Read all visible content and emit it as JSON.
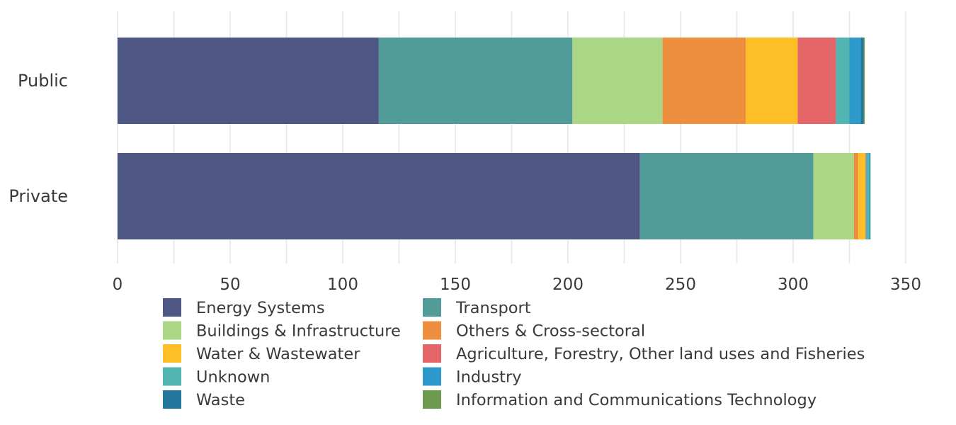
{
  "chart_data": {
    "type": "bar",
    "orientation": "horizontal",
    "stacked": true,
    "title": "",
    "xlabel": "",
    "ylabel": "",
    "categories": [
      "Public",
      "Private"
    ],
    "xlim": [
      0,
      350
    ],
    "xticks": [
      0,
      50,
      100,
      150,
      200,
      250,
      300,
      350
    ],
    "grid": true,
    "legend_position": "bottom",
    "series": [
      {
        "name": "Energy Systems",
        "color": "#4e5784",
        "values": [
          116,
          232
        ]
      },
      {
        "name": "Transport",
        "color": "#519c98",
        "values": [
          86,
          77
        ]
      },
      {
        "name": "Buildings & Infrastructure",
        "color": "#abd686",
        "values": [
          40,
          18
        ]
      },
      {
        "name": "Others & Cross-sectoral",
        "color": "#ee8f3f",
        "values": [
          37,
          2
        ]
      },
      {
        "name": "Water & Wastewater",
        "color": "#fdbf25",
        "values": [
          23,
          3
        ]
      },
      {
        "name": "Agriculture, Forestry, Other land uses and Fisheries",
        "color": "#e46668",
        "values": [
          17,
          0.3
        ]
      },
      {
        "name": "Unknown",
        "color": "#53b5b2",
        "values": [
          6,
          1.5
        ]
      },
      {
        "name": "Industry",
        "color": "#2e99cb",
        "values": [
          5,
          0.3
        ]
      },
      {
        "name": "Waste",
        "color": "#24789e",
        "values": [
          1.3,
          0.2
        ]
      },
      {
        "name": "Information and Communications Technology",
        "color": "#6c9a4c",
        "values": [
          0.5,
          0.1
        ]
      }
    ]
  }
}
